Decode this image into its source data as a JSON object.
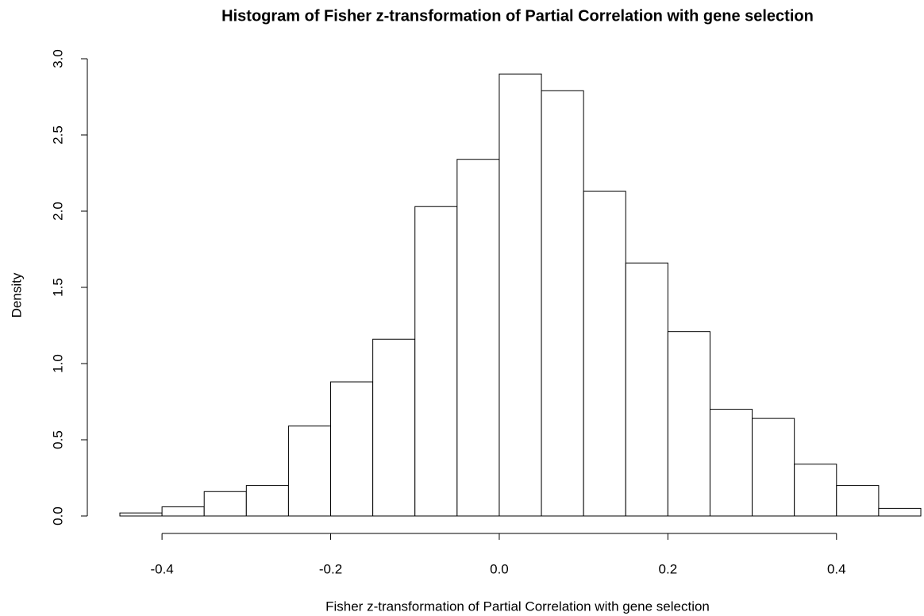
{
  "chart_data": {
    "type": "histogram",
    "title": "Histogram of Fisher z-transformation of Partial Correlation with gene selection",
    "x_label": "Fisher z-transformation of Partial Correlation with gene selection",
    "y_label": "Density",
    "bins": [
      -0.45,
      -0.4,
      -0.35,
      -0.3,
      -0.25,
      -0.2,
      -0.15,
      -0.1,
      -0.05,
      0,
      0.05,
      0.1,
      0.15,
      0.2,
      0.25,
      0.3,
      0.35,
      0.4,
      0.45,
      0.5
    ],
    "values": [
      0.02,
      0.06,
      0.16,
      0.2,
      0.59,
      0.88,
      1.16,
      2.03,
      2.34,
      2.9,
      2.79,
      2.13,
      1.66,
      1.21,
      0.7,
      0.64,
      0.34,
      0.2,
      0.05
    ],
    "color": "#ffffff",
    "xlim": [
      -0.45,
      0.5
    ],
    "ylim": [
      0,
      3
    ],
    "xticks": [
      -0.4,
      -0.2,
      {
        "value": 0,
        "label": "0.0"
      },
      0.2,
      0.4
    ],
    "yticks": [
      {
        "value": 0,
        "label": "0.0"
      },
      0.5,
      {
        "value": 1,
        "label": "1.0"
      },
      1.5,
      {
        "value": 2,
        "label": "2.0"
      },
      2.5,
      {
        "value": 3,
        "label": "3.0"
      }
    ]
  }
}
